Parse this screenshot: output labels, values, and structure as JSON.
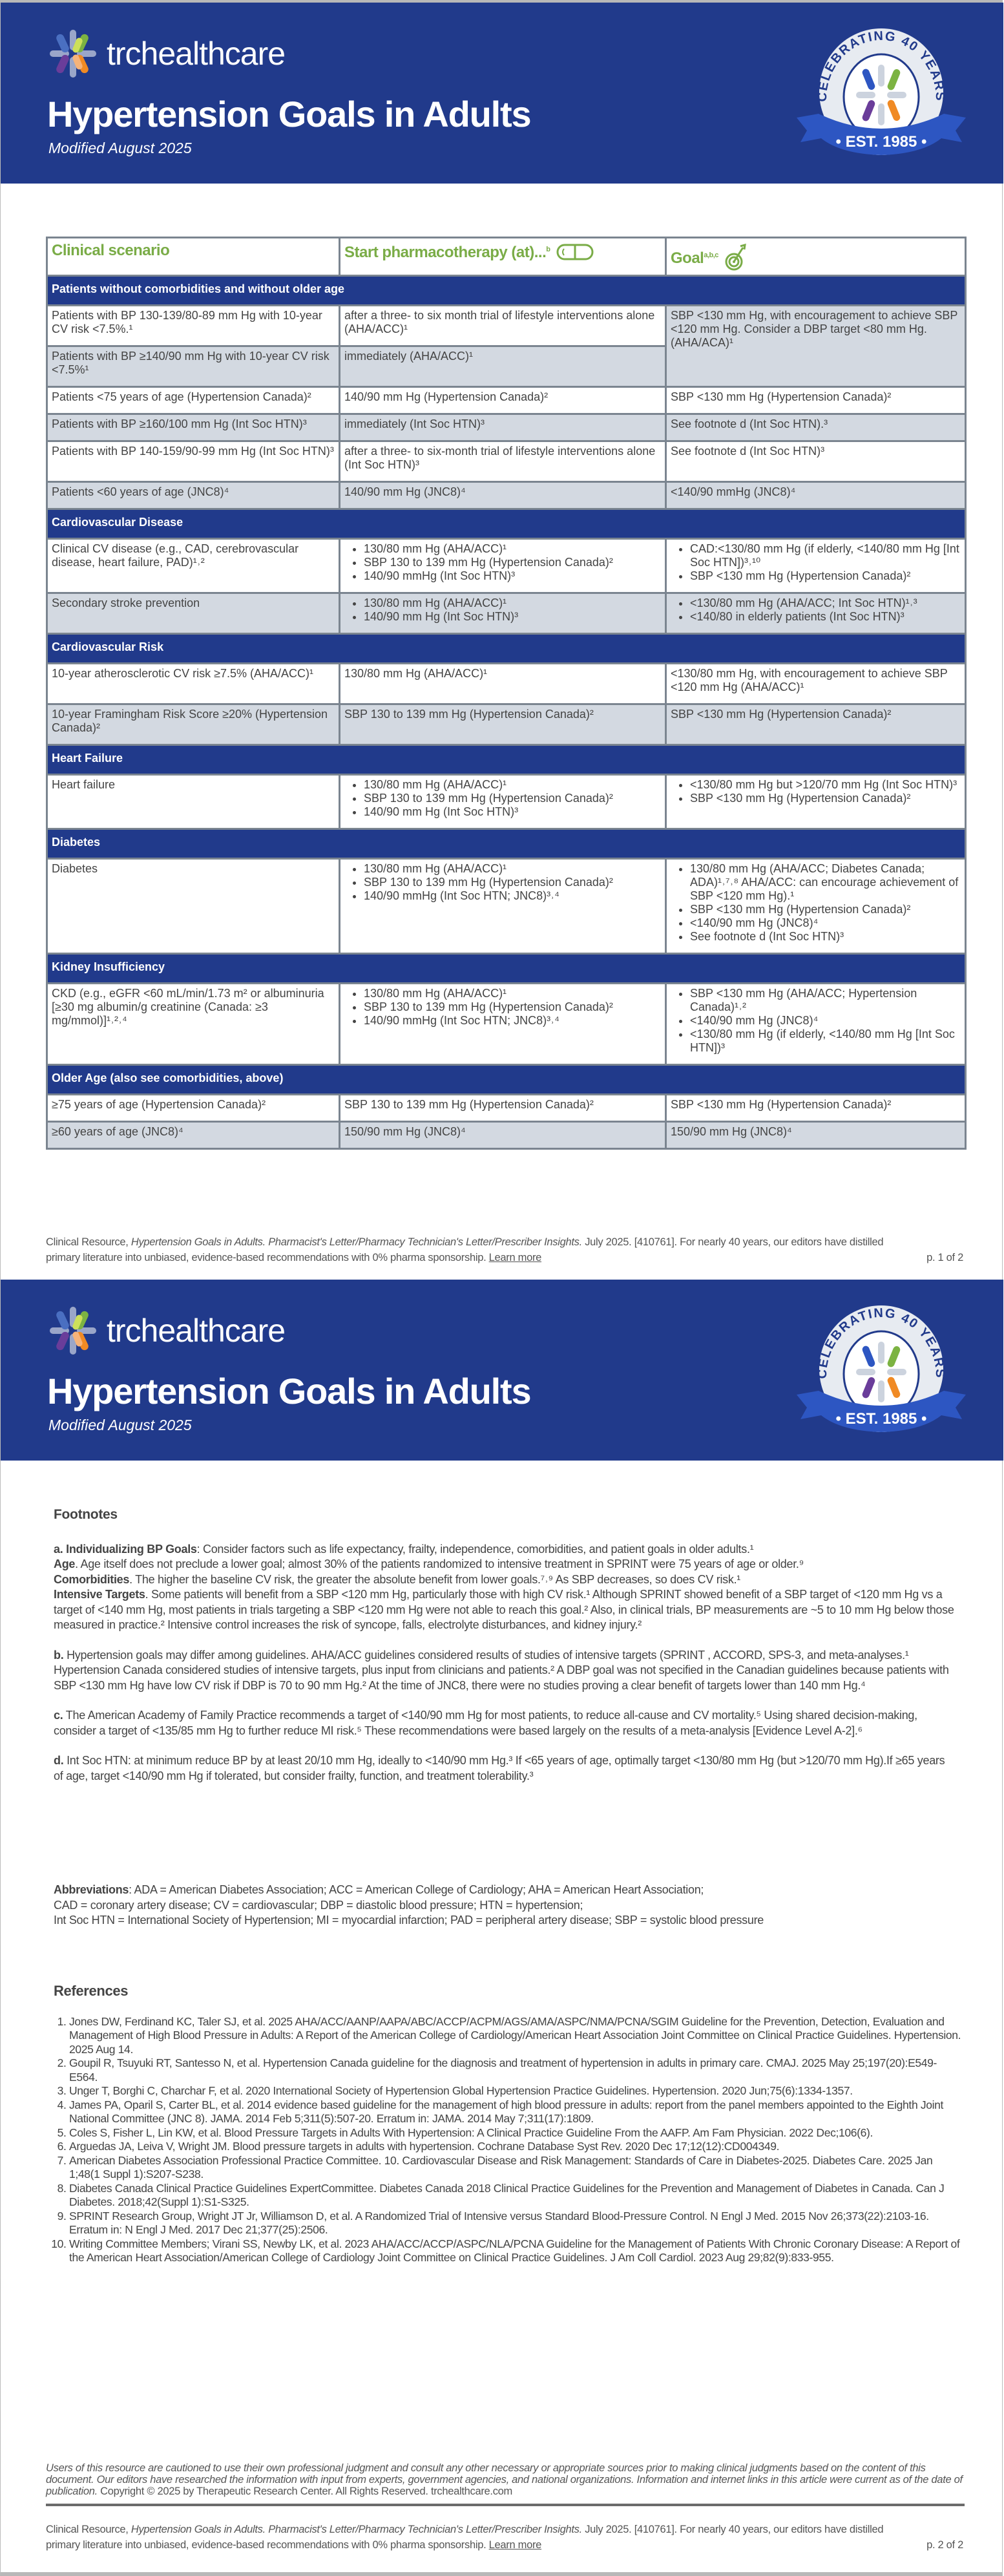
{
  "brand": {
    "name": "trchealthcare",
    "badge_top": "CELEBRATING 40 YEARS",
    "badge_bottom": "• EST. 1985 •"
  },
  "colors": {
    "header_blue": "#213a8b",
    "accent_green": "#7aac47",
    "row_gray": "#d3d9e1",
    "border_gray": "#7b8590"
  },
  "header": {
    "title": "Hypertension Goals in Adults",
    "modified": "Modified August 2025"
  },
  "table": {
    "columns": [
      {
        "label": "Clinical scenario",
        "icon": ""
      },
      {
        "label": "Start pharmacotherapy (at)...",
        "sup": "b",
        "icon": "pill-icon"
      },
      {
        "label": "Goal",
        "sup": "a,b,c",
        "icon": "target-icon"
      }
    ],
    "sections": [
      {
        "title": "Patients without comorbidities and without older age",
        "rows": [
          {
            "scenario": "Patients with BP 130-139/80-89 mm Hg with 10-year CV risk <7.5%.¹",
            "start": "after a three- to six month trial of lifestyle interventions alone (AHA/ACC)¹",
            "goal": "SBP <130 mm Hg, with encouragement to achieve SBP <120 mm Hg. Consider a DBP target <80 mm Hg.  (AHA/ACA)¹",
            "goal_rows": 2
          },
          {
            "scenario": "Patients with BP ≥140/90 mm Hg with 10-year CV risk <7.5%¹",
            "start": "immediately (AHA/ACC)¹",
            "goal": null
          },
          {
            "scenario": "Patients <75 years of age (Hypertension Canada)²",
            "start": "140/90 mm Hg (Hypertension Canada)²",
            "goal": "SBP <130 mm Hg (Hypertension Canada)²"
          },
          {
            "scenario": "Patients with BP ≥160/100 mm Hg (Int Soc HTN)³",
            "start": "immediately (Int Soc HTN)³",
            "goal": "See footnote d (Int Soc HTN).³"
          },
          {
            "scenario": "Patients with BP 140-159/90-99 mm Hg (Int Soc HTN)³",
            "start": "after a three- to six-month trial of lifestyle interventions alone (Int Soc HTN)³",
            "goal": "See footnote d (Int Soc HTN)³"
          },
          {
            "scenario": "Patients <60 years of age (JNC8)⁴",
            "start": "140/90 mm Hg (JNC8)⁴",
            "goal": "<140/90 mmHg (JNC8)⁴"
          }
        ]
      },
      {
        "title": "Cardiovascular Disease",
        "rows": [
          {
            "scenario": "Clinical CV disease (e.g., CAD, cerebrovascular disease, heart failure, PAD)¹˒²",
            "start": [
              "130/80 mm Hg (AHA/ACC)¹",
              "SBP 130 to 139 mm Hg (Hypertension Canada)²",
              "140/90 mmHg (Int Soc HTN)³"
            ],
            "goal": [
              "CAD:<130/80 mm Hg (if elderly, <140/80 mm Hg [Int Soc HTN])³˒¹⁰",
              "SBP <130 mm Hg (Hypertension Canada)²"
            ]
          },
          {
            "scenario": "Secondary stroke prevention",
            "start": [
              "130/80 mm Hg (AHA/ACC)¹",
              "140/90 mm Hg (Int Soc HTN)³"
            ],
            "goal": [
              "<130/80 mm Hg (AHA/ACC; Int Soc HTN)¹˒³",
              "<140/80 in elderly patients (Int Soc HTN)³"
            ]
          }
        ]
      },
      {
        "title": "Cardiovascular Risk",
        "rows": [
          {
            "scenario": "10-year atherosclerotic CV risk ≥7.5% (AHA/ACC)¹",
            "start": "130/80 mm Hg (AHA/ACC)¹",
            "goal": "<130/80 mm Hg, with encouragement to achieve SBP <120 mm Hg (AHA/ACC)¹"
          },
          {
            "scenario": "10-year Framingham Risk Score ≥20% (Hypertension Canada)²",
            "start": "SBP 130 to 139 mm Hg (Hypertension Canada)²",
            "goal": "SBP <130 mm Hg (Hypertension Canada)²"
          }
        ]
      },
      {
        "title": "Heart Failure",
        "rows": [
          {
            "scenario": "Heart failure",
            "start": [
              "130/80 mm Hg (AHA/ACC)¹",
              "SBP 130 to 139 mm Hg (Hypertension Canada)²",
              "140/90 mm Hg (Int Soc HTN)³"
            ],
            "goal": [
              "<130/80 mm Hg but >120/70 mm Hg (Int Soc HTN)³",
              "SBP <130 mm Hg (Hypertension Canada)²"
            ]
          }
        ]
      },
      {
        "title": "Diabetes",
        "rows": [
          {
            "scenario": "Diabetes",
            "start": [
              "130/80 mm Hg (AHA/ACC)¹",
              "SBP 130 to 139 mm Hg (Hypertension Canada)²",
              "140/90 mmHg (Int Soc HTN; JNC8)³˒⁴"
            ],
            "goal": [
              "130/80 mm Hg (AHA/ACC; Diabetes Canada; ADA)¹˒⁷˒⁸  AHA/ACC: can encourage achievement of SBP <120 mm Hg).¹",
              "SBP <130 mm Hg (Hypertension Canada)²",
              "<140/90 mm Hg (JNC8)⁴",
              "See footnote d (Int Soc HTN)³"
            ]
          }
        ]
      },
      {
        "title": "Kidney Insufficiency",
        "rows": [
          {
            "scenario": "CKD (e.g., eGFR <60 mL/min/1.73 m² or albuminuria [≥30 mg albumin/g creatinine (Canada: ≥3 mg/mmol)]¹˒²˒⁴",
            "start": [
              "130/80 mm Hg (AHA/ACC)¹",
              "SBP 130 to 139 mm Hg (Hypertension Canada)²",
              "140/90 mmHg (Int Soc HTN; JNC8)³˒⁴"
            ],
            "goal": [
              "SBP <130 mm Hg (AHA/ACC; Hypertension Canada)¹˒²",
              "<140/90 mm Hg (JNC8)⁴",
              "<130/80 mm Hg (if elderly, <140/80 mm Hg [Int Soc HTN])³"
            ]
          }
        ]
      },
      {
        "title": "Older Age (also see comorbidities, above)",
        "rows": [
          {
            "scenario": "≥75 years of age (Hypertension Canada)²",
            "start": "SBP 130 to 139 mm Hg (Hypertension Canada)²",
            "goal": "SBP <130 mm Hg (Hypertension Canada)²"
          },
          {
            "scenario": "≥60 years of age (JNC8)⁴",
            "start": "150/90 mm Hg (JNC8)⁴",
            "goal": "150/90 mm Hg (JNC8)⁴"
          }
        ]
      }
    ]
  },
  "footer": {
    "prefix": "Clinical Resource, ",
    "italic": "Hypertension Goals in Adults. Pharmacist's Letter/Pharmacy Technician's Letter/Prescriber Insights.",
    "suffix": " July 2025. [410761]. For nearly 40 years, our editors have distilled primary literature into unbiased, evidence-based recommendations with 0% pharma sponsorship. ",
    "link": "Learn more",
    "page1": "p. 1 of 2",
    "page2": "p. 2 of 2"
  },
  "footnotes": {
    "title": "Footnotes",
    "items": [
      [
        {
          "b": "a. Individualizing BP Goals",
          "t": ": Consider factors such as life expectancy, frailty, independence, comorbidities, and patient goals in older adults.¹"
        },
        {
          "br": true,
          "b": "Age",
          "t": ". Age itself does not preclude a lower goal; almost 30% of the patients randomized to intensive treatment in SPRINT were 75 years of age or older.⁹"
        },
        {
          "br": true,
          "b": "Comorbidities",
          "t": ". The higher the baseline CV risk, the greater the absolute benefit from lower goals.⁷˒⁹  As SBP decreases, so does CV risk.¹"
        },
        {
          "br": true,
          "b": "Intensive Targets",
          "t": ". Some patients will benefit from a SBP <120 mm Hg, particularly those with high CV risk.¹ Although SPRINT showed benefit of a SBP target of <120 mm Hg vs a target of <140 mm Hg, most patients in trials targeting a SBP <120 mm Hg were not able to reach this goal.² Also, in clinical trials, BP measurements are ~5 to 10 mm Hg below those measured in practice.² Intensive control increases the risk of syncope, falls, electrolyte disturbances, and kidney injury.²"
        }
      ],
      [
        {
          "b": "b.",
          "t": " Hypertension goals may differ among guidelines. AHA/ACC guidelines considered results of studies of intensive targets (SPRINT , ACCORD, SPS-3, and meta-analyses.¹ Hypertension Canada considered studies of intensive targets, plus input from clinicians and patients.² A DBP goal was not specified in the Canadian guidelines because patients with SBP <130 mm Hg have low CV risk if DBP is 70 to 90 mm Hg.² At the time of JNC8, there were no studies proving a clear benefit of targets lower than 140 mm Hg.⁴"
        }
      ],
      [
        {
          "b": "c.",
          "t": " The American Academy of Family Practice recommends a target of <140/90 mm Hg for most patients, to reduce all-cause and CV mortality.⁵ Using shared decision-making, consider a target of <135/85 mm Hg to further reduce MI risk.⁵ These recommendations were based largely on the results of a meta-analysis [Evidence Level A-2].⁶"
        }
      ],
      [
        {
          "b": "d.",
          "t": " Int Soc HTN: at minimum reduce BP by at least 20/10 mm Hg, ideally to <140/90 mm Hg.³ If <65 years of age, optimally target <130/80 mm Hg (but >120/70 mm Hg).If ≥65 years of age, target <140/90 mm Hg if tolerated, but consider frailty, function, and treatment tolerability.³"
        }
      ]
    ]
  },
  "abbreviations": {
    "label": "Abbreviations",
    "lines": [
      ": ADA = American Diabetes Association; ACC = American College of Cardiology; AHA = American Heart Association;",
      "CAD = coronary artery disease; CV = cardiovascular; DBP = diastolic blood pressure; HTN = hypertension;",
      "Int Soc HTN = International Society of Hypertension; MI = myocardial infarction; PAD = peripheral artery disease; SBP = systolic blood pressure"
    ]
  },
  "references": {
    "title": "References",
    "items": [
      "Jones DW, Ferdinand KC, Taler SJ, et al. 2025 AHA/ACC/AANP/AAPA/ABC/ACCP/ACPM/AGS/AMA/ASPC/NMA/PCNA/SGIM Guideline for the Prevention, Detection, Evaluation and Management of High Blood Pressure in Adults: A Report of the American College of Cardiology/American Heart Association Joint Committee on Clinical Practice Guidelines. Hypertension. 2025 Aug 14.",
      "Goupil R, Tsuyuki RT, Santesso N, et al. Hypertension Canada guideline for the diagnosis and treatment of hypertension in adults in primary care. CMAJ. 2025 May 25;197(20):E549-E564.",
      "Unger T, Borghi C, Charchar F, et al. 2020 International Society of Hypertension Global Hypertension Practice Guidelines. Hypertension. 2020 Jun;75(6):1334-1357.",
      "James PA, Oparil S, Carter BL, et al. 2014 evidence based guideline for the management of high blood pressure in adults: report from the panel members appointed to the Eighth Joint National Committee (JNC 8). JAMA. 2014 Feb 5;311(5):507-20. Erratum in: JAMA. 2014 May 7;311(17):1809.",
      "Coles S, Fisher L, Lin KW, et al. Blood Pressure Targets in Adults With Hypertension: A Clinical Practice Guideline From the AAFP. Am Fam Physician. 2022 Dec;106(6).",
      "Arguedas JA, Leiva V, Wright JM. Blood pressure targets in adults with hypertension. Cochrane Database Syst Rev. 2020 Dec 17;12(12):CD004349.",
      "American Diabetes Association Professional Practice Committee. 10. Cardiovascular Disease and Risk Management: Standards of Care in Diabetes-2025. Diabetes Care. 2025 Jan 1;48(1 Suppl 1):S207-S238.",
      "Diabetes Canada Clinical Practice Guidelines ExpertCommittee. Diabetes Canada 2018 Clinical Practice Guidelines for the Prevention and Management of Diabetes in Canada. Can J Diabetes. 2018;42(Suppl 1):S1-S325.",
      "SPRINT Research Group, Wright JT Jr, Williamson D, et al. A Randomized Trial of Intensive versus Standard Blood-Pressure Control. N Engl J Med. 2015 Nov 26;373(22):2103-16. Erratum in: N Engl J Med. 2017 Dec 21;377(25):2506.",
      "Writing Committee Members; Virani SS, Newby LK, et al. 2023 AHA/ACC/ACCP/ASPC/NLA/PCNA Guideline for the Management of Patients With Chronic Coronary Disease: A Report of the American Heart Association/American College of Cardiology Joint Committee on Clinical Practice Guidelines. J Am Coll Cardiol. 2023 Aug 29;82(9):833-955."
    ]
  },
  "disclaimer": {
    "italic": "Users of this resource are cautioned to use their own professional judgment and consult any other necessary or appropriate sources prior to making clinical judgments based on the content of this document. Our editors have researched the information with input from experts, government agencies, and national organizations. Information and internet links in this article were current as of the date of publication.",
    "normal": " Copyright © 2025 by Therapeutic Research Center. All Rights Reserved. trchealthcare.com"
  }
}
